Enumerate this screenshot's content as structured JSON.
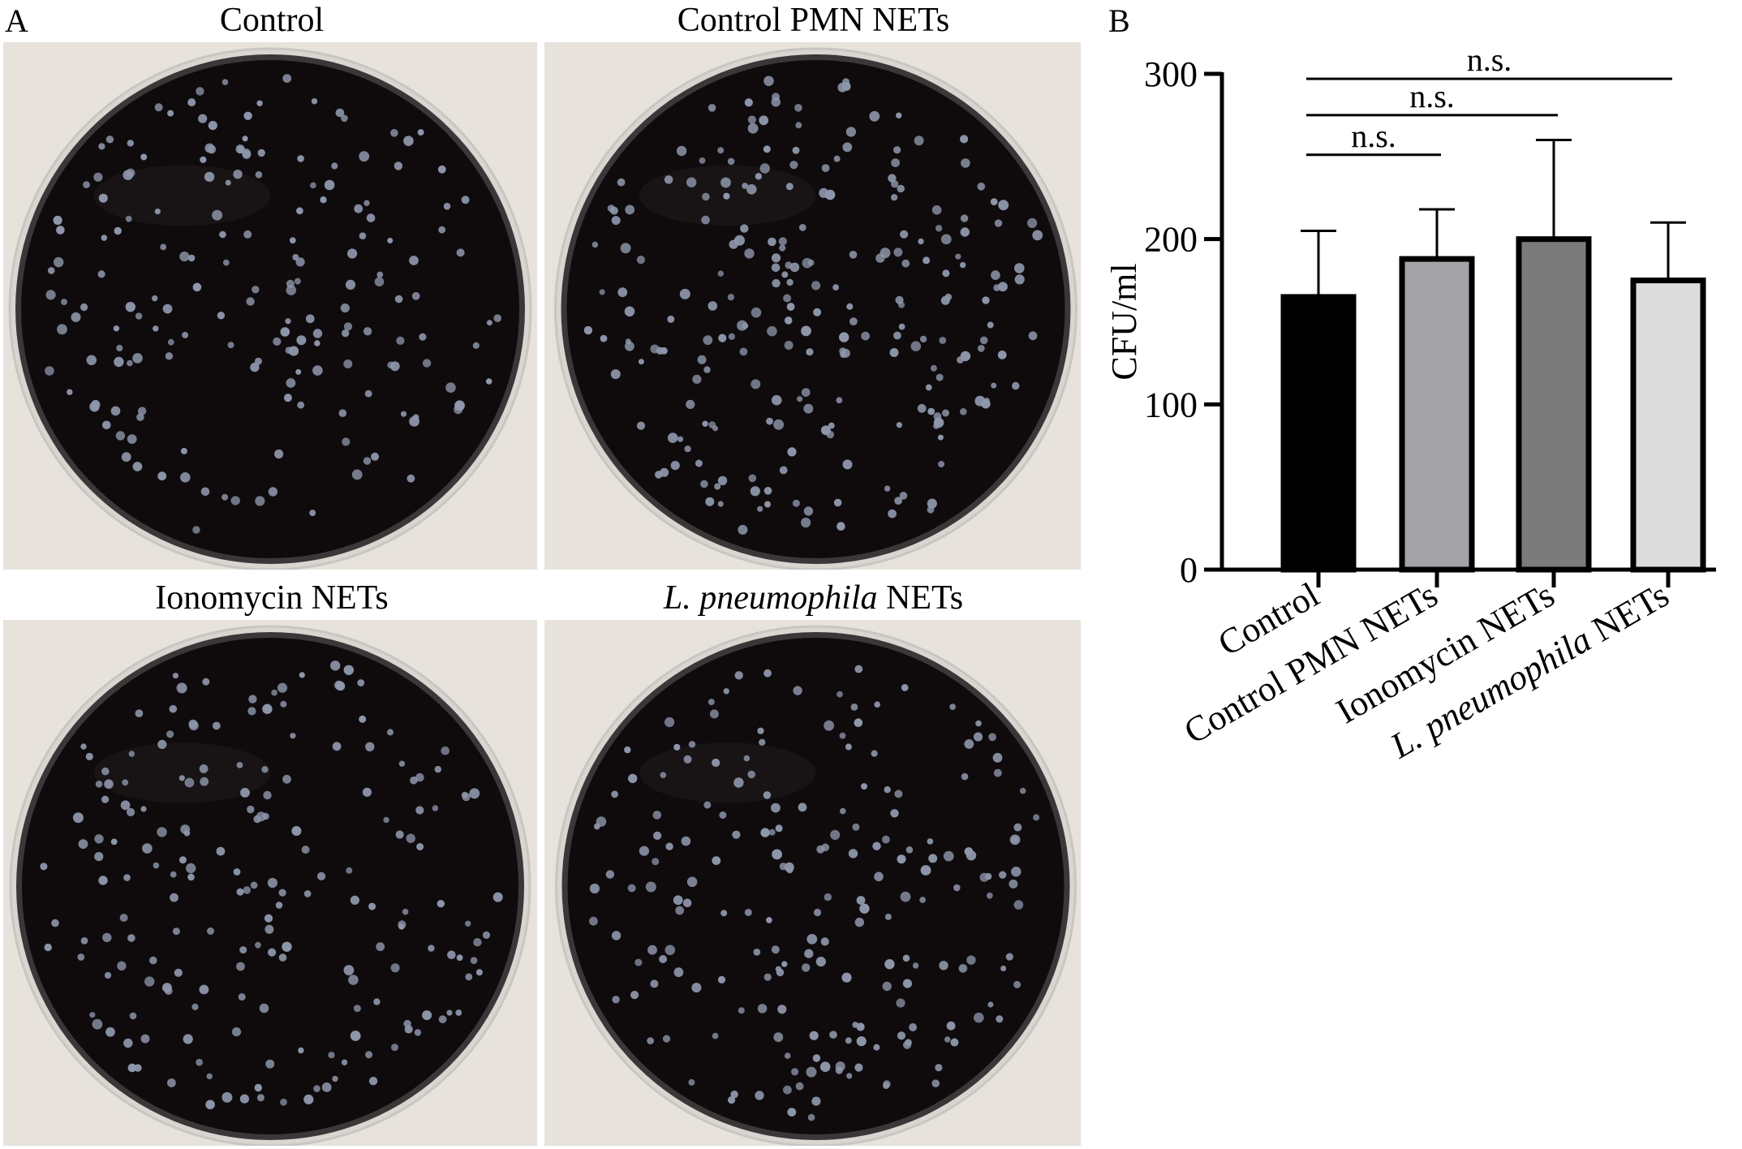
{
  "panel_a": {
    "letter": "A",
    "plates": [
      {
        "id": "control",
        "title": "Control"
      },
      {
        "id": "control-pmn",
        "title": "Control PMN NETs"
      },
      {
        "id": "ionomycin",
        "title": "Ionomycin NETs"
      },
      {
        "id": "lpneumo",
        "title_italic": "L. pneumophila",
        "title_rest": " NETs"
      }
    ]
  },
  "panel_b": {
    "letter": "B"
  },
  "colors": {
    "background_wall": "#e7e3dc",
    "agar": "#0f0b0d",
    "colony": "#8e97ab",
    "dish_rim": "#c9c6c1"
  },
  "chart_data": {
    "type": "bar",
    "ylabel": "CFU/ml",
    "ylim": [
      0,
      300
    ],
    "yticks": [
      0,
      100,
      200,
      300
    ],
    "categories": [
      {
        "label": "Control"
      },
      {
        "label": "Control PMN NETs"
      },
      {
        "label": "Ionomycin NETs"
      },
      {
        "label_italic": "L. pneumophila",
        "label_rest": " NETs"
      }
    ],
    "values": [
      165,
      188,
      200,
      175
    ],
    "errors": [
      40,
      30,
      60,
      35
    ],
    "bar_colors": [
      "#000000",
      "#a3a3a7",
      "#7b7b7b",
      "#dcdcdc"
    ],
    "significance": [
      {
        "from": 0,
        "to": 1,
        "label": "n.s."
      },
      {
        "from": 0,
        "to": 2,
        "label": "n.s."
      },
      {
        "from": 0,
        "to": 3,
        "label": "n.s."
      }
    ]
  }
}
